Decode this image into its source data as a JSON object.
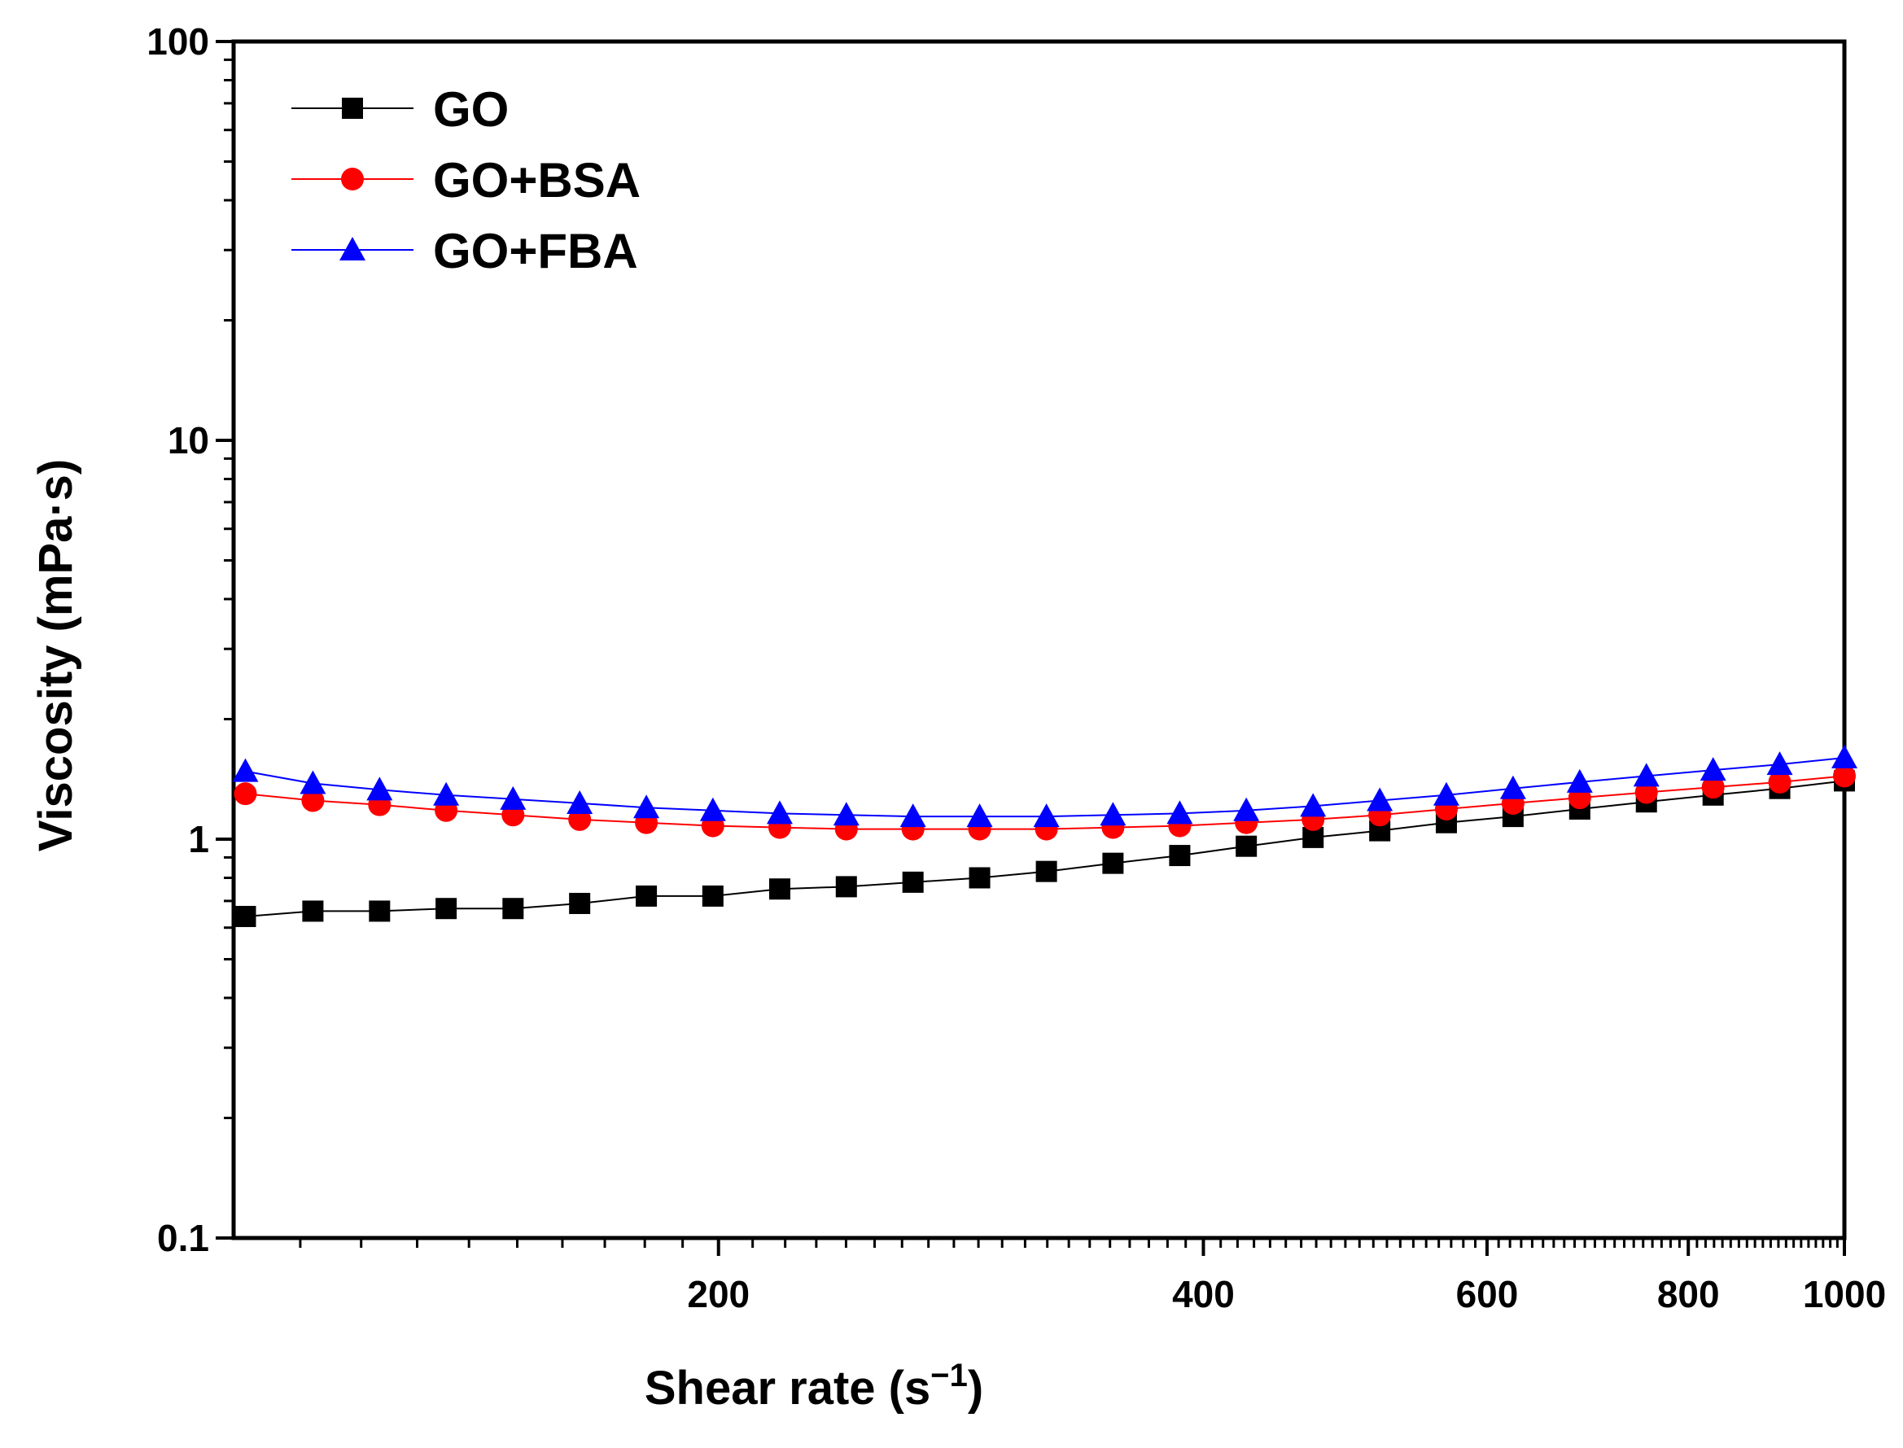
{
  "chart_data": {
    "type": "line",
    "title": "",
    "xlabel": "Shear rate (s",
    "xlabel_sup": "−1",
    "xlabel_close": ")",
    "ylabel": "Viscosity (mPa·s)",
    "xscale": "log",
    "yscale": "log",
    "xlim": [
      100,
      1000
    ],
    "ylim": [
      0.1,
      100
    ],
    "x_ticks": [
      {
        "value": 200,
        "label": "200"
      },
      {
        "value": 400,
        "label": "400"
      },
      {
        "value": 600,
        "label": "600"
      },
      {
        "value": 800,
        "label": "800"
      },
      {
        "value": 1000,
        "label": "1000"
      }
    ],
    "y_ticks": [
      {
        "value": 0.1,
        "label": "0.1"
      },
      {
        "value": 1,
        "label": "1"
      },
      {
        "value": 10,
        "label": "10"
      },
      {
        "value": 100,
        "label": "100"
      }
    ],
    "grid": false,
    "legend_position": "top-left",
    "x": [
      101.7,
      112,
      123.2,
      135.5,
      149.1,
      164,
      180.4,
      198.4,
      218.3,
      240.1,
      264.1,
      290.5,
      319.6,
      351.5,
      386.7,
      425.3,
      467.9,
      514.7,
      566.1,
      622.7,
      685,
      753.5,
      828.9,
      911.7,
      1000
    ],
    "series": [
      {
        "name": "GO",
        "color": "#000000",
        "marker": "square",
        "values": [
          0.64,
          0.66,
          0.66,
          0.67,
          0.67,
          0.69,
          0.72,
          0.72,
          0.75,
          0.76,
          0.78,
          0.8,
          0.83,
          0.87,
          0.91,
          0.96,
          1.01,
          1.05,
          1.1,
          1.14,
          1.19,
          1.24,
          1.29,
          1.34,
          1.4
        ]
      },
      {
        "name": "GO+BSA",
        "color": "#ff0000",
        "marker": "circle",
        "values": [
          1.3,
          1.25,
          1.22,
          1.18,
          1.15,
          1.12,
          1.1,
          1.08,
          1.07,
          1.06,
          1.06,
          1.06,
          1.06,
          1.07,
          1.08,
          1.1,
          1.12,
          1.15,
          1.19,
          1.23,
          1.27,
          1.31,
          1.35,
          1.39,
          1.44
        ]
      },
      {
        "name": "GO+FBA",
        "color": "#0000ff",
        "marker": "triangle",
        "values": [
          1.48,
          1.38,
          1.33,
          1.29,
          1.26,
          1.23,
          1.2,
          1.18,
          1.16,
          1.15,
          1.14,
          1.14,
          1.14,
          1.15,
          1.16,
          1.18,
          1.21,
          1.25,
          1.29,
          1.34,
          1.39,
          1.44,
          1.49,
          1.54,
          1.6
        ]
      }
    ]
  }
}
